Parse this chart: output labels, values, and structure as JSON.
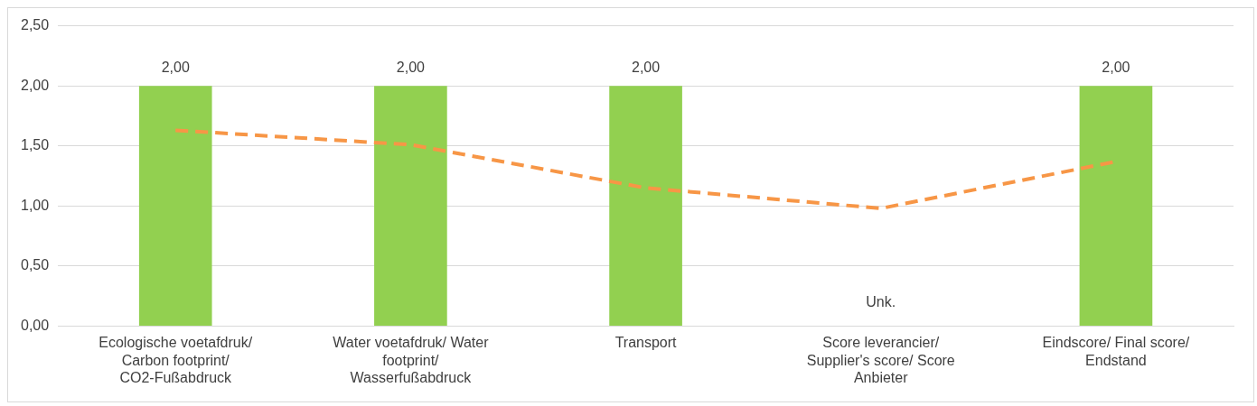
{
  "chart_data": {
    "type": "bar",
    "categories": [
      "Ecologische voetafdruk/ Carbon footprint/ CO2-Fußabdruck",
      "Water voetafdruk/ Water footprint/ Wasserfußabdruck",
      "Transport",
      "Score leverancier/ Supplier's score/ Score Anbieter",
      "Eindscore/ Final score/ Endstand"
    ],
    "series": [
      {
        "color": "#92d050",
        "values": [
          2,
          2,
          2,
          null,
          2
        ],
        "value_labels": [
          "2,00",
          "2,00",
          "2,00",
          "Unk.",
          "2,00"
        ]
      },
      {
        "type": "line",
        "color": "#f79646",
        "values": [
          1.63,
          1.51,
          1.15,
          0.98,
          1.37
        ],
        "line_style": "dashed",
        "marker": "none"
      }
    ],
    "ylim": [
      0,
      2.5
    ],
    "yticks": [
      {
        "value": 0,
        "label": "0,00"
      },
      {
        "value": 0.5,
        "label": "0,50"
      },
      {
        "value": 1,
        "label": "1,00"
      },
      {
        "value": 1.5,
        "label": "1,50"
      },
      {
        "value": 2,
        "label": "2,00"
      },
      {
        "value": 2.5,
        "label": "2,50"
      }
    ],
    "grid": "y",
    "legend": false
  }
}
